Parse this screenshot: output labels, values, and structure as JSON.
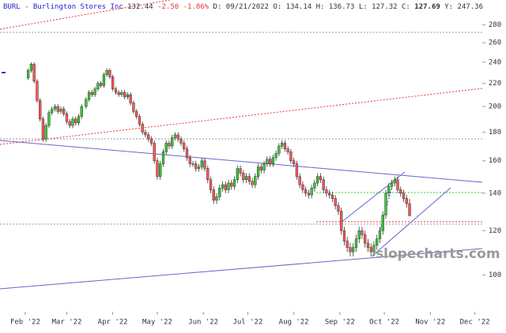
{
  "header": {
    "symbol": "BURL - Burlington Stores Inc",
    "price": "132.44",
    "change": "-2.50",
    "change_pct": "-1.86%",
    "date": "D: 09/21/2022",
    "open": "O: 134.14",
    "high": "H: 136.73",
    "low": "L: 127.32",
    "close_label": "C:",
    "close": "127.69",
    "year_high": "Y: 247.36"
  },
  "watermark": "slopecharts.com",
  "chart_data": {
    "type": "candlestick",
    "log_scale": true,
    "grid": false,
    "up_color": "#33cc33",
    "down_color": "#ff5555",
    "ylim": [
      86,
      310
    ],
    "yticks": [
      100,
      120,
      140,
      160,
      180,
      200,
      220,
      240,
      260,
      280
    ],
    "xlim": [
      14,
      339
    ],
    "xticks": [
      {
        "value": 31,
        "label": "Feb '22"
      },
      {
        "value": 59,
        "label": "Mar '22"
      },
      {
        "value": 90,
        "label": "Apr '22"
      },
      {
        "value": 120,
        "label": "May '22"
      },
      {
        "value": 151,
        "label": "Jun '22"
      },
      {
        "value": 181,
        "label": "Jul '22"
      },
      {
        "value": 212,
        "label": "Aug '22"
      },
      {
        "value": 243,
        "label": "Sep '22"
      },
      {
        "value": 273,
        "label": "Oct '22"
      },
      {
        "value": 304,
        "label": "Nov '22"
      },
      {
        "value": 334,
        "label": "Dec '22"
      }
    ],
    "x": [
      33,
      35,
      37,
      39,
      41,
      43,
      45,
      47,
      49,
      51,
      53,
      55,
      57,
      59,
      61,
      63,
      65,
      67,
      69,
      72,
      74,
      76,
      78,
      80,
      82,
      84,
      86,
      88,
      90,
      92,
      94,
      96,
      98,
      100,
      102,
      104,
      106,
      108,
      110,
      112,
      114,
      116,
      118,
      120,
      122,
      124,
      126,
      128,
      130,
      132,
      134,
      136,
      138,
      140,
      142,
      144,
      146,
      148,
      150,
      152,
      154,
      156,
      158,
      160,
      162,
      164,
      166,
      168,
      170,
      172,
      174,
      176,
      178,
      180,
      182,
      184,
      186,
      188,
      190,
      192,
      194,
      196,
      198,
      200,
      202,
      204,
      206,
      208,
      210,
      212,
      214,
      216,
      218,
      220,
      222,
      224,
      226,
      228,
      230,
      232,
      234,
      236,
      238,
      240,
      242,
      244,
      246,
      248,
      250,
      252,
      254,
      256,
      258,
      260,
      262,
      264,
      266,
      268,
      270,
      272,
      274,
      276,
      278,
      280,
      282,
      284,
      286,
      288,
      290
    ],
    "open": [
      225,
      232,
      238,
      222,
      205,
      190,
      175,
      185,
      195,
      198,
      200,
      196,
      198,
      194,
      188,
      185,
      190,
      187,
      192,
      200,
      206,
      212,
      210,
      215,
      220,
      218,
      228,
      232,
      226,
      215,
      212,
      210,
      212,
      208,
      210,
      203,
      196,
      192,
      186,
      180,
      178,
      175,
      172,
      160,
      150,
      158,
      166,
      172,
      170,
      176,
      178,
      175,
      172,
      168,
      162,
      158,
      158,
      155,
      156,
      160,
      155,
      148,
      142,
      136,
      138,
      143,
      145,
      142,
      146,
      144,
      148,
      155,
      152,
      148,
      150,
      147,
      145,
      150,
      156,
      154,
      158,
      161,
      158,
      162,
      165,
      170,
      172,
      168,
      166,
      160,
      158,
      150,
      145,
      142,
      140,
      139,
      143,
      146,
      150,
      148,
      142,
      140,
      139,
      137,
      133,
      130,
      120,
      115,
      112,
      110,
      112,
      116,
      120,
      118,
      114,
      112,
      110,
      113,
      116,
      120,
      128,
      140,
      144,
      146,
      148,
      142,
      140,
      137,
      134.14
    ],
    "high": [
      234,
      240,
      240,
      224,
      207,
      192,
      187,
      197,
      200,
      202,
      202,
      200,
      200,
      196,
      190,
      192,
      192,
      194,
      202,
      208,
      214,
      214,
      217,
      222,
      222,
      230,
      234,
      234,
      228,
      217,
      214,
      214,
      214,
      212,
      212,
      205,
      198,
      194,
      188,
      182,
      180,
      177,
      174,
      162,
      160,
      168,
      174,
      174,
      178,
      180,
      180,
      177,
      174,
      170,
      164,
      160,
      160,
      158,
      162,
      162,
      157,
      150,
      144,
      140,
      145,
      147,
      147,
      148,
      148,
      150,
      157,
      157,
      154,
      152,
      152,
      149,
      152,
      158,
      158,
      160,
      163,
      163,
      164,
      167,
      172,
      174,
      174,
      170,
      168,
      162,
      160,
      152,
      147,
      144,
      142,
      145,
      148,
      152,
      152,
      150,
      144,
      142,
      141,
      139,
      135,
      132,
      122,
      117,
      114,
      114,
      118,
      122,
      122,
      120,
      116,
      114,
      115,
      118,
      122,
      130,
      142,
      146,
      148,
      150,
      150,
      144,
      142,
      139,
      136.73
    ],
    "low": [
      223,
      230,
      220,
      203,
      188,
      173,
      173,
      183,
      193,
      196,
      194,
      194,
      192,
      186,
      183,
      183,
      185,
      185,
      190,
      198,
      204,
      208,
      208,
      213,
      216,
      216,
      226,
      224,
      213,
      210,
      208,
      208,
      206,
      206,
      201,
      194,
      190,
      184,
      178,
      176,
      173,
      170,
      158,
      148,
      148,
      156,
      164,
      168,
      168,
      174,
      173,
      170,
      166,
      160,
      156,
      156,
      153,
      153,
      154,
      153,
      146,
      140,
      134,
      134,
      136,
      141,
      140,
      140,
      142,
      142,
      146,
      150,
      146,
      146,
      145,
      143,
      143,
      148,
      152,
      152,
      156,
      156,
      156,
      160,
      163,
      168,
      166,
      164,
      158,
      156,
      148,
      143,
      140,
      138,
      137,
      137,
      141,
      144,
      146,
      140,
      138,
      137,
      135,
      131,
      128,
      118,
      113,
      110,
      108,
      108,
      110,
      114,
      116,
      112,
      110,
      108,
      108,
      111,
      114,
      118,
      126,
      138,
      142,
      144,
      140,
      138,
      135,
      132,
      127.32
    ],
    "close": [
      232,
      238,
      222,
      205,
      190,
      175,
      185,
      195,
      198,
      200,
      196,
      198,
      194,
      188,
      185,
      190,
      187,
      192,
      200,
      206,
      212,
      210,
      215,
      220,
      218,
      228,
      232,
      226,
      215,
      212,
      210,
      212,
      208,
      210,
      203,
      196,
      192,
      186,
      180,
      178,
      175,
      172,
      160,
      150,
      158,
      166,
      172,
      170,
      176,
      178,
      175,
      172,
      168,
      162,
      158,
      158,
      155,
      156,
      160,
      155,
      148,
      142,
      136,
      138,
      143,
      145,
      142,
      146,
      144,
      148,
      155,
      152,
      148,
      150,
      147,
      145,
      150,
      156,
      154,
      158,
      161,
      158,
      162,
      165,
      170,
      172,
      168,
      166,
      160,
      158,
      150,
      145,
      142,
      140,
      139,
      143,
      146,
      150,
      148,
      142,
      140,
      139,
      137,
      133,
      130,
      120,
      115,
      112,
      110,
      112,
      116,
      120,
      118,
      114,
      112,
      110,
      113,
      116,
      120,
      128,
      140,
      144,
      146,
      148,
      142,
      140,
      137,
      134.14,
      127.69
    ]
  }
}
